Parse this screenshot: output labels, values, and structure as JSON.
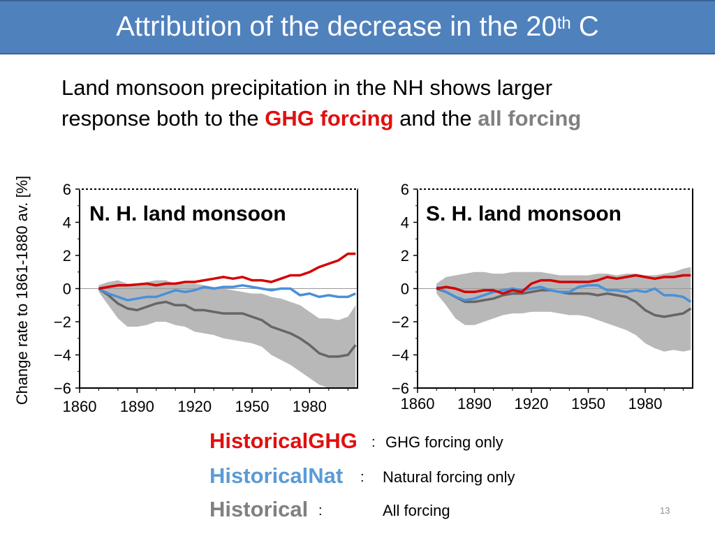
{
  "slide": {
    "title": "Attribution of the decrease in the 20",
    "title_sup": "th",
    "title_end": " C",
    "subtitle_line1": "Land monsoon precipitation in the NH shows larger",
    "subtitle_line2_start": "response both to the ",
    "subtitle_red": "GHG forcing",
    "subtitle_mid": " and the ",
    "subtitle_gray": "all forcing",
    "page_number": "13"
  },
  "shared_ylabel": "Change rate to 1861-1880 av. [%]",
  "legend": [
    {
      "name": "HistoricalGHG",
      "colon": ":",
      "desc": "GHG forcing only",
      "color": "#e0100f"
    },
    {
      "name": "HistoricalNat",
      "colon": ":",
      "desc": "Natural forcing only",
      "color": "#5b9bd5"
    },
    {
      "name": "Historical",
      "colon": ":",
      "desc": "All forcing",
      "color": "#808080"
    }
  ],
  "colors": {
    "ghg": "#d40000",
    "nat": "#4a90d9",
    "hist": "#666666",
    "spread": "#b8b8b8",
    "title_bar": "#4f81bd"
  },
  "chart_data": [
    {
      "type": "line",
      "title": "N. H. land monsoon",
      "xlim": [
        1860,
        2005
      ],
      "ylim": [
        -6,
        6
      ],
      "xticks": [
        "1860",
        "1890",
        "1920",
        "1950",
        "1980"
      ],
      "yticks": [
        "6",
        "4",
        "2",
        "0",
        "−2",
        "−4",
        "−6"
      ],
      "zero_line": true,
      "x": [
        1870,
        1875,
        1880,
        1885,
        1890,
        1895,
        1900,
        1905,
        1910,
        1915,
        1920,
        1925,
        1930,
        1935,
        1940,
        1945,
        1950,
        1955,
        1960,
        1965,
        1970,
        1975,
        1980,
        1985,
        1990,
        1995,
        2000,
        2004
      ],
      "series": [
        {
          "name": "HistoricalGHG",
          "color_key": "ghg",
          "values": [
            0,
            0.1,
            0.2,
            0.2,
            0.25,
            0.3,
            0.2,
            0.3,
            0.3,
            0.4,
            0.4,
            0.5,
            0.6,
            0.7,
            0.6,
            0.7,
            0.5,
            0.5,
            0.4,
            0.6,
            0.8,
            0.8,
            1.0,
            1.3,
            1.5,
            1.7,
            2.1,
            2.1
          ]
        },
        {
          "name": "HistoricalNat",
          "color_key": "nat",
          "values": [
            0,
            -0.3,
            -0.5,
            -0.7,
            -0.6,
            -0.5,
            -0.5,
            -0.3,
            -0.1,
            -0.2,
            -0.1,
            0.1,
            0.0,
            0.1,
            0.1,
            0.2,
            0.1,
            0.0,
            -0.1,
            0.0,
            0.0,
            -0.4,
            -0.3,
            -0.5,
            -0.4,
            -0.5,
            -0.5,
            -0.3
          ]
        },
        {
          "name": "Historical",
          "color_key": "hist",
          "values": [
            0,
            -0.4,
            -0.9,
            -1.2,
            -1.3,
            -1.1,
            -0.9,
            -0.8,
            -1.0,
            -1.0,
            -1.3,
            -1.3,
            -1.4,
            -1.5,
            -1.5,
            -1.5,
            -1.7,
            -1.9,
            -2.3,
            -2.5,
            -2.7,
            -3.0,
            -3.4,
            -3.9,
            -4.1,
            -4.1,
            -4.0,
            -3.4
          ]
        }
      ],
      "spread_upper": [
        0.2,
        0.4,
        0.5,
        0.3,
        0.2,
        0.4,
        0.5,
        0.5,
        0.3,
        0.3,
        0.3,
        0.2,
        0.1,
        0.0,
        -0.1,
        -0.2,
        -0.3,
        -0.3,
        -0.5,
        -0.6,
        -0.8,
        -1.0,
        -1.4,
        -1.8,
        -1.8,
        -1.9,
        -1.7,
        -1.0
      ],
      "spread_lower": [
        -0.2,
        -1.0,
        -1.8,
        -2.3,
        -2.3,
        -2.2,
        -2.0,
        -2.0,
        -2.2,
        -2.3,
        -2.6,
        -2.7,
        -2.8,
        -3.0,
        -3.1,
        -3.2,
        -3.3,
        -3.5,
        -4.0,
        -4.3,
        -4.6,
        -5.0,
        -5.4,
        -5.8,
        -6.0,
        -6.0,
        -6.0,
        -6.0
      ]
    },
    {
      "type": "line",
      "title": "S. H. land monsoon",
      "xlim": [
        1860,
        2005
      ],
      "ylim": [
        -6,
        6
      ],
      "xticks": [
        "1860",
        "1890",
        "1920",
        "1950",
        "1980"
      ],
      "yticks": [
        "6",
        "4",
        "2",
        "0",
        "−2",
        "−4",
        "−6"
      ],
      "zero_line": true,
      "x": [
        1870,
        1875,
        1880,
        1885,
        1890,
        1895,
        1900,
        1905,
        1910,
        1915,
        1920,
        1925,
        1930,
        1935,
        1940,
        1945,
        1950,
        1955,
        1960,
        1965,
        1970,
        1975,
        1980,
        1985,
        1990,
        1995,
        2000,
        2004
      ],
      "series": [
        {
          "name": "HistoricalGHG",
          "color_key": "ghg",
          "values": [
            0,
            0.1,
            0.0,
            -0.2,
            -0.2,
            -0.1,
            -0.1,
            -0.3,
            -0.1,
            -0.2,
            0.3,
            0.5,
            0.5,
            0.4,
            0.4,
            0.4,
            0.4,
            0.5,
            0.7,
            0.6,
            0.7,
            0.8,
            0.7,
            0.6,
            0.7,
            0.7,
            0.8,
            0.8
          ]
        },
        {
          "name": "HistoricalNat",
          "color_key": "nat",
          "values": [
            0.1,
            -0.2,
            -0.5,
            -0.7,
            -0.6,
            -0.4,
            -0.2,
            -0.1,
            0.0,
            -0.1,
            0.0,
            0.1,
            -0.1,
            -0.2,
            -0.2,
            0.1,
            0.2,
            0.2,
            -0.1,
            -0.1,
            -0.2,
            -0.1,
            -0.2,
            0.0,
            -0.4,
            -0.4,
            -0.5,
            -0.8
          ]
        },
        {
          "name": "Historical",
          "color_key": "hist",
          "values": [
            0,
            -0.2,
            -0.5,
            -0.8,
            -0.8,
            -0.7,
            -0.6,
            -0.4,
            -0.3,
            -0.3,
            -0.2,
            -0.1,
            -0.1,
            -0.2,
            -0.3,
            -0.3,
            -0.3,
            -0.4,
            -0.3,
            -0.4,
            -0.5,
            -0.8,
            -1.3,
            -1.6,
            -1.7,
            -1.6,
            -1.5,
            -1.2
          ]
        }
      ],
      "spread_upper": [
        0.3,
        0.7,
        0.8,
        0.9,
        1.0,
        1.0,
        0.9,
        0.9,
        1.0,
        1.0,
        1.0,
        1.0,
        0.9,
        0.8,
        0.8,
        0.8,
        0.8,
        0.9,
        0.9,
        0.8,
        0.9,
        0.9,
        0.8,
        0.8,
        0.9,
        1.0,
        1.2,
        1.3
      ],
      "spread_lower": [
        -0.3,
        -1.0,
        -1.8,
        -2.2,
        -2.2,
        -2.0,
        -1.8,
        -1.6,
        -1.5,
        -1.5,
        -1.4,
        -1.4,
        -1.4,
        -1.5,
        -1.6,
        -1.6,
        -1.7,
        -1.9,
        -2.1,
        -2.3,
        -2.5,
        -2.8,
        -3.3,
        -3.6,
        -3.8,
        -3.7,
        -3.8,
        -3.7
      ]
    }
  ]
}
